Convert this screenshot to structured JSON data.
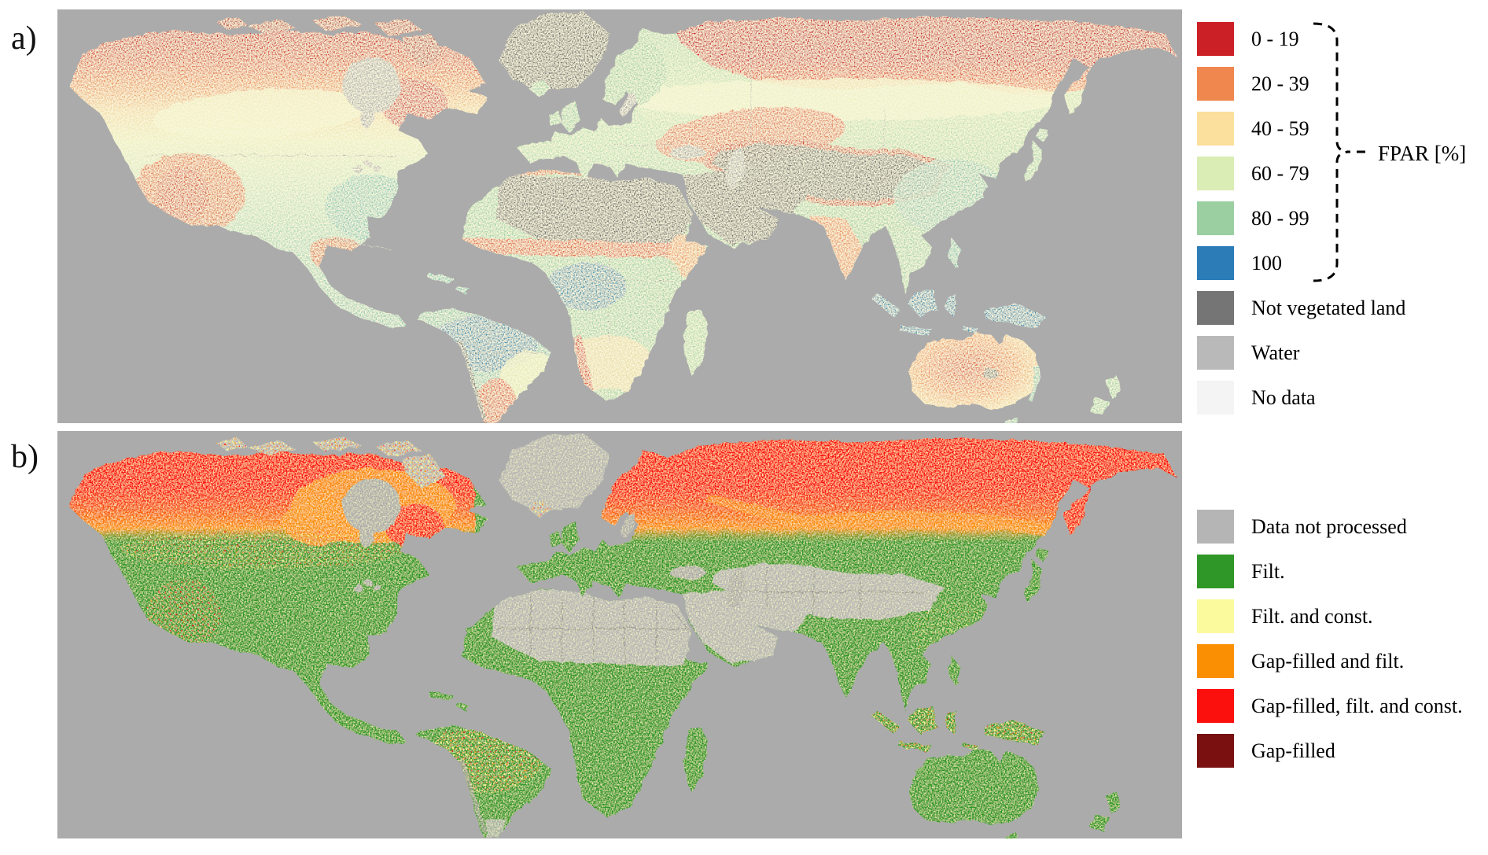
{
  "panels": {
    "a": {
      "label": "a)"
    },
    "b": {
      "label": "b)"
    }
  },
  "legend_a": {
    "group_label": "FPAR [%]",
    "items": [
      {
        "label": "0 - 19",
        "color": "#cb2026"
      },
      {
        "label": "20 - 39",
        "color": "#f0874e"
      },
      {
        "label": "40 - 59",
        "color": "#fbdf9c"
      },
      {
        "label": "60 - 79",
        "color": "#d9edb4"
      },
      {
        "label": "80 - 99",
        "color": "#9bcfa2"
      },
      {
        "label": "100",
        "color": "#2c7cb8"
      },
      {
        "label": "Not vegetated land",
        "color": "#757575"
      },
      {
        "label": "Water",
        "color": "#b9b9b9"
      },
      {
        "label": "No data",
        "color": "#f4f4f4"
      }
    ]
  },
  "legend_b": {
    "items": [
      {
        "label": "Data not processed",
        "color": "#b5b5b5"
      },
      {
        "label": "Filt.",
        "color": "#2f9727"
      },
      {
        "label": "Filt. and const.",
        "color": "#fbfa9d"
      },
      {
        "label": "Gap-filled and filt.",
        "color": "#fb8f04"
      },
      {
        "label": "Gap-filled, filt. and const.",
        "color": "#fc100e"
      },
      {
        "label": "Gap-filled",
        "color": "#7a1010"
      }
    ]
  },
  "map_palette": {
    "water": "#ababab",
    "not_vegetated": "#6e6e6e",
    "not_processed": "#b5b5b5",
    "filt_green": "#2f9727",
    "band_red": "#fb0e0e",
    "band_orange": "#fb8f04",
    "border": "#8a8a8a"
  }
}
